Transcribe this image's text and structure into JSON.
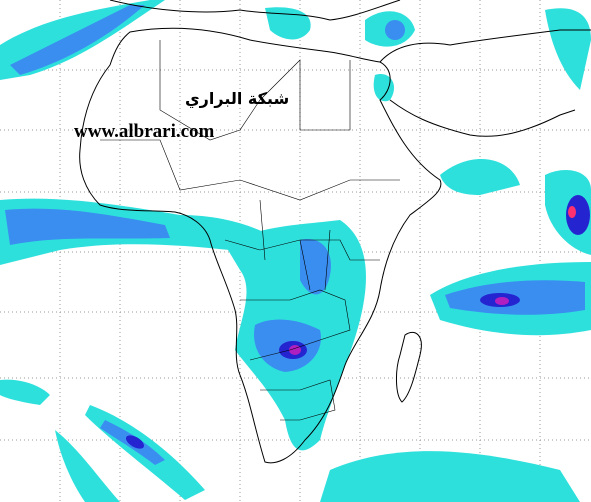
{
  "watermark": {
    "site_name": "شبكة البراري",
    "url": "www.albrari.com"
  }
}
